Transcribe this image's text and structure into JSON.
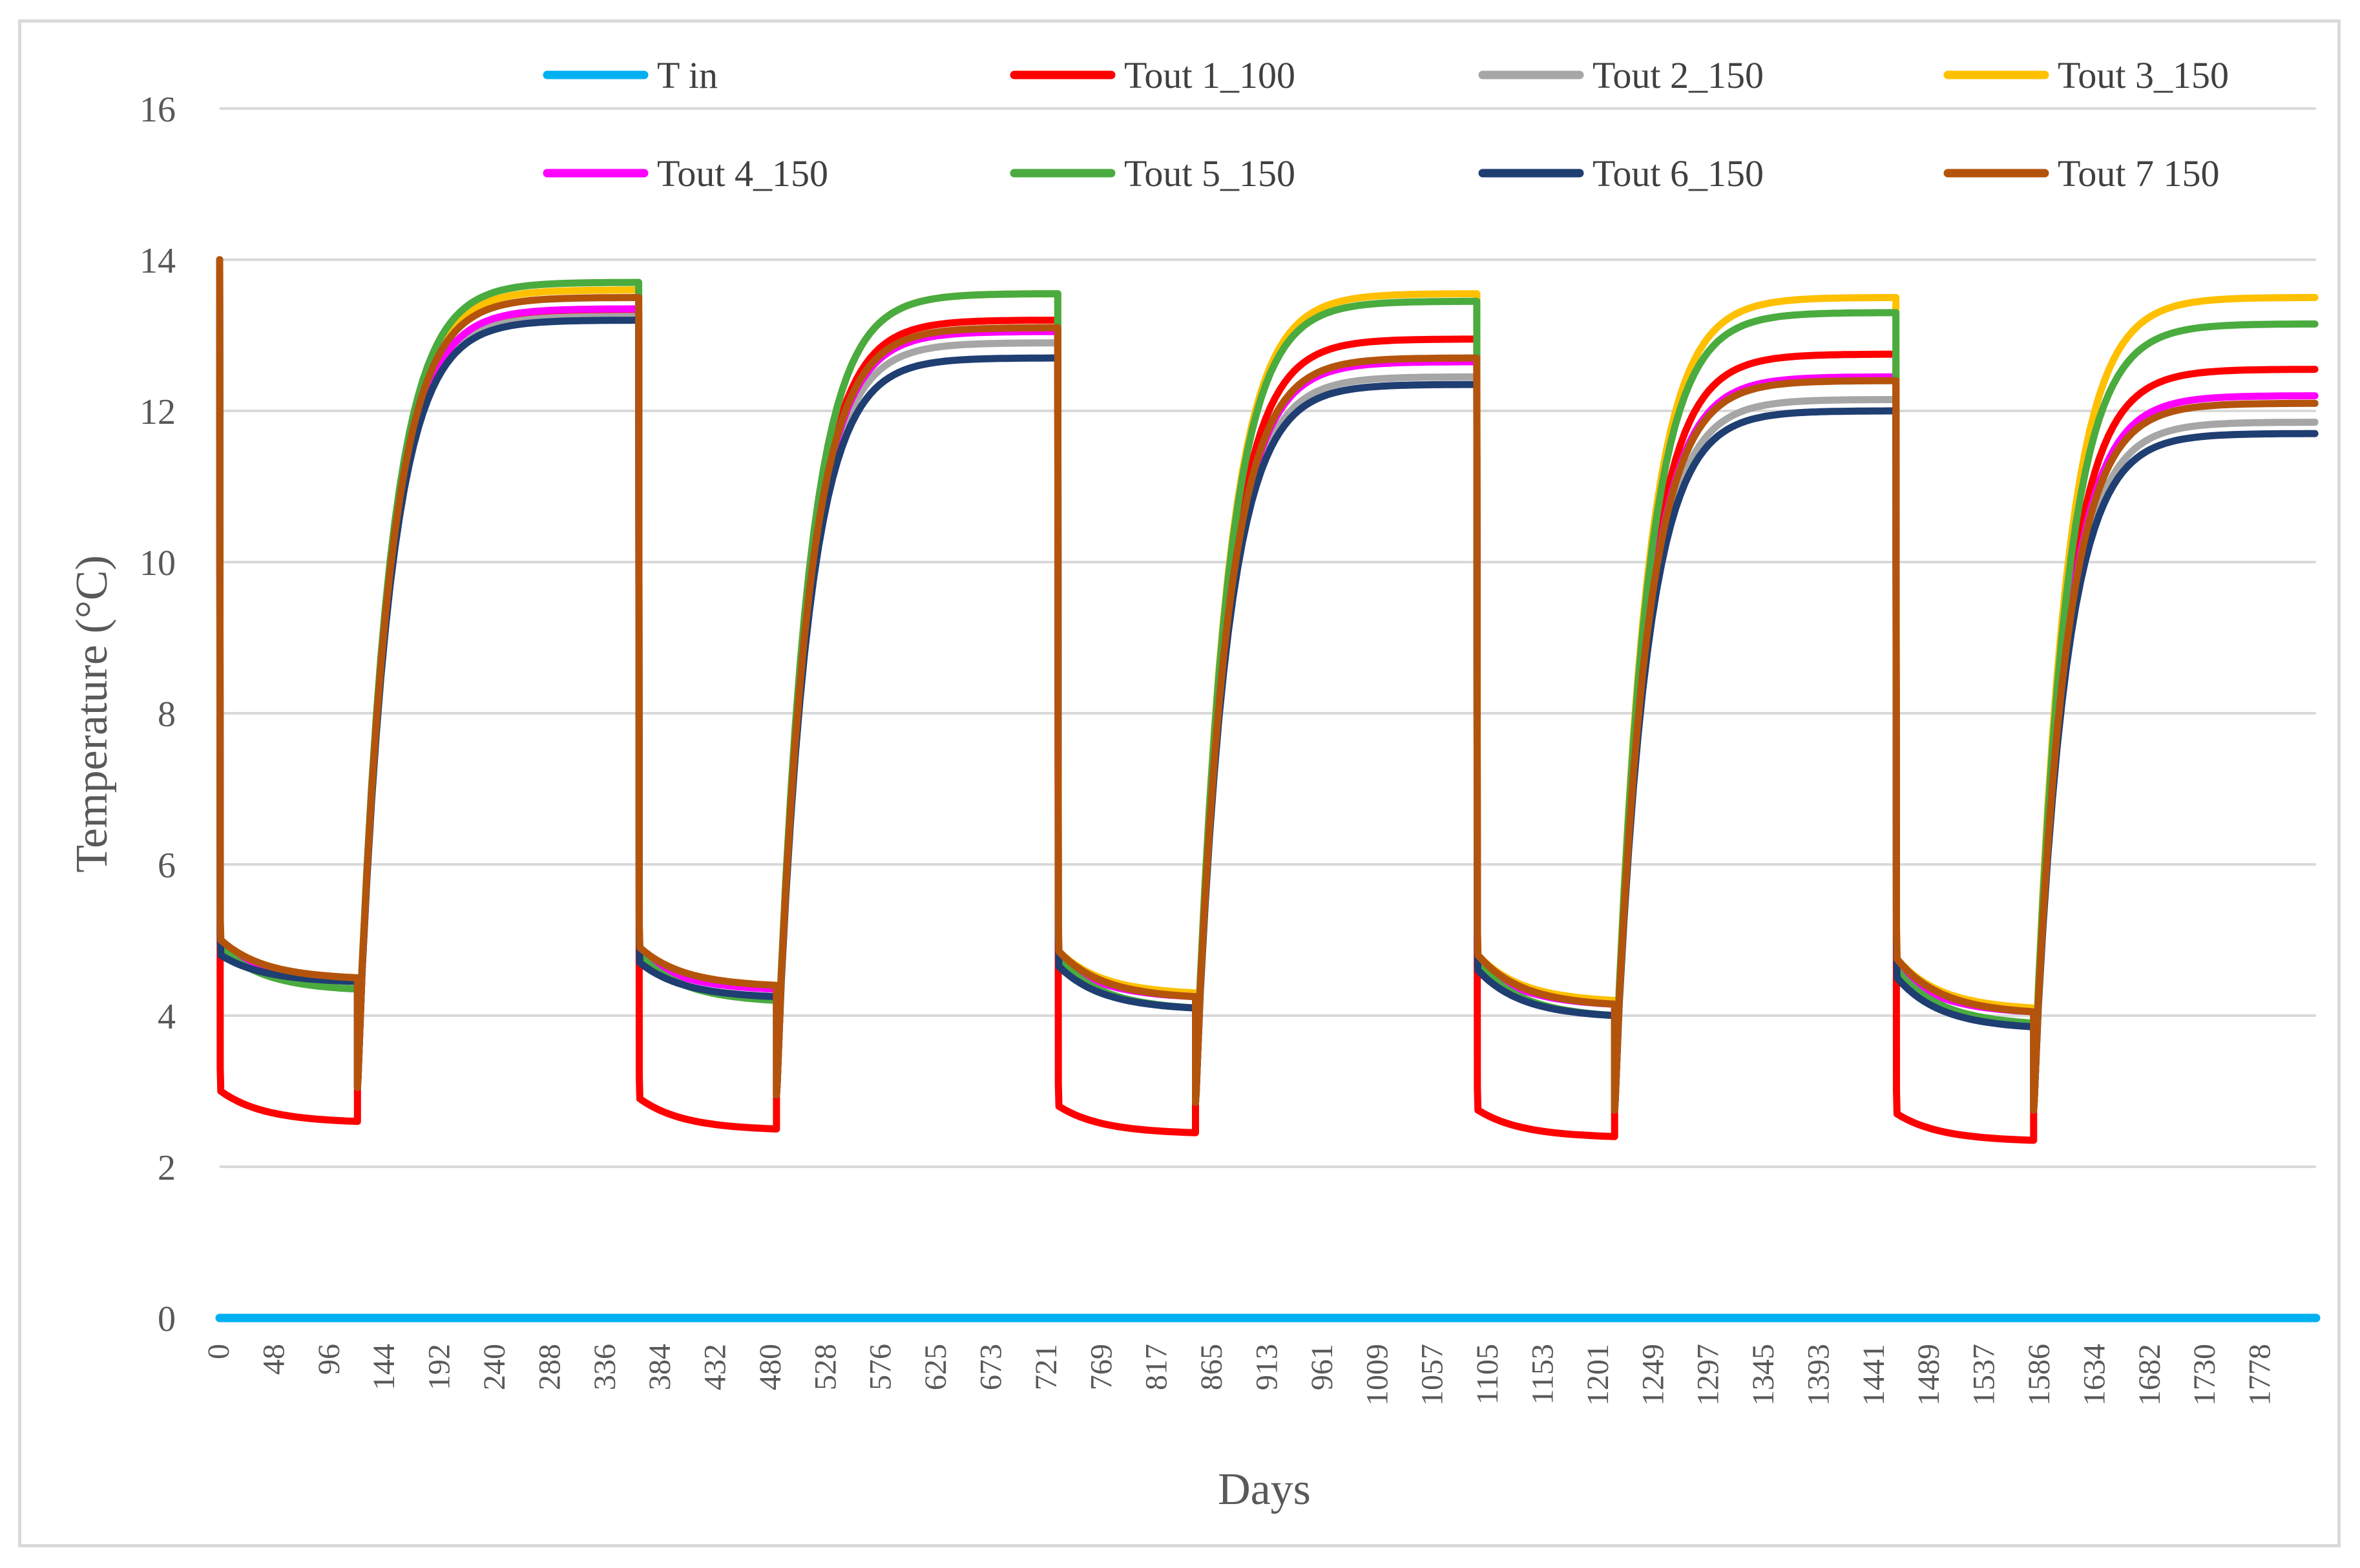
{
  "chart_data": {
    "type": "line",
    "title": "",
    "xlabel": "Days",
    "ylabel": "Temperature (°C)",
    "ylim": [
      0,
      16
    ],
    "xlim": [
      0,
      1826
    ],
    "yticks": [
      0,
      2,
      4,
      6,
      8,
      10,
      12,
      14,
      16
    ],
    "x_tick_labels": [
      "0",
      "48",
      "96",
      "144",
      "192",
      "240",
      "288",
      "336",
      "384",
      "432",
      "480",
      "528",
      "576",
      "625",
      "673",
      "721",
      "769",
      "817",
      "865",
      "913",
      "961",
      "1009",
      "1057",
      "1105",
      "1153",
      "1201",
      "1249",
      "1297",
      "1345",
      "1393",
      "1441",
      "1489",
      "1537",
      "1586",
      "1634",
      "1682",
      "1730",
      "1778"
    ],
    "grid": "horizontal",
    "legend_position": "top",
    "cycle": {
      "period_days": 365,
      "heating_days": 120,
      "cycles": 5,
      "start_temperature": 14
    },
    "series": [
      {
        "name": "T in",
        "color": "#00b0f0",
        "constant": 0
      },
      {
        "name": "Tout 1_100",
        "color": "#ff0000",
        "heat_start": [
          3.0,
          2.9,
          2.8,
          2.75,
          2.7
        ],
        "heat_end": [
          2.6,
          2.5,
          2.45,
          2.4,
          2.35
        ],
        "recover_start": [
          3.2,
          3.1,
          3.0,
          2.9,
          2.9
        ],
        "recover_end": [
          13.3,
          13.2,
          12.95,
          12.75,
          12.55
        ]
      },
      {
        "name": "Tout 2_150",
        "color": "#a6a6a6",
        "heat_start": [
          4.9,
          4.8,
          4.75,
          4.7,
          4.6
        ],
        "heat_end": [
          4.45,
          4.35,
          4.25,
          4.15,
          4.05
        ],
        "recover_start": [
          3.2,
          3.1,
          3.0,
          2.9,
          2.9
        ],
        "recover_end": [
          13.25,
          12.9,
          12.45,
          12.15,
          11.85
        ]
      },
      {
        "name": "Tout 3_150",
        "color": "#ffc000",
        "heat_start": [
          5.0,
          4.9,
          4.85,
          4.8,
          4.75
        ],
        "heat_end": [
          4.5,
          4.4,
          4.3,
          4.2,
          4.1
        ],
        "recover_start": [
          3.2,
          3.1,
          3.0,
          2.9,
          2.9
        ],
        "recover_end": [
          13.6,
          13.55,
          13.55,
          13.5,
          13.5
        ]
      },
      {
        "name": "Tout 4_150",
        "color": "#ff00ff",
        "heat_start": [
          4.9,
          4.8,
          4.75,
          4.7,
          4.6
        ],
        "heat_end": [
          4.45,
          4.35,
          4.25,
          4.15,
          4.05
        ],
        "recover_start": [
          3.2,
          3.1,
          3.0,
          2.9,
          2.9
        ],
        "recover_end": [
          13.35,
          13.05,
          12.65,
          12.45,
          12.2
        ]
      },
      {
        "name": "Tout 5_150",
        "color": "#4aab3f",
        "heat_start": [
          4.9,
          4.8,
          4.75,
          4.7,
          4.6
        ],
        "heat_end": [
          4.35,
          4.2,
          4.1,
          4.0,
          3.9
        ],
        "recover_start": [
          3.2,
          3.1,
          3.0,
          2.9,
          2.9
        ],
        "recover_end": [
          13.7,
          13.55,
          13.45,
          13.3,
          13.15
        ]
      },
      {
        "name": "Tout 6_150",
        "color": "#1f3e72",
        "heat_start": [
          4.8,
          4.7,
          4.65,
          4.6,
          4.5
        ],
        "heat_end": [
          4.45,
          4.25,
          4.1,
          4.0,
          3.85
        ],
        "recover_start": [
          3.2,
          3.1,
          3.0,
          2.9,
          2.9
        ],
        "recover_end": [
          13.2,
          12.7,
          12.35,
          12.0,
          11.7
        ]
      },
      {
        "name": "Tout 7 150",
        "color": "#b4540c",
        "heat_start": [
          5.0,
          4.9,
          4.85,
          4.8,
          4.75
        ],
        "heat_end": [
          4.5,
          4.4,
          4.25,
          4.15,
          4.05
        ],
        "recover_start": [
          3.2,
          3.1,
          3.0,
          2.9,
          2.9
        ],
        "recover_end": [
          13.5,
          13.1,
          12.7,
          12.4,
          12.1
        ]
      }
    ]
  }
}
